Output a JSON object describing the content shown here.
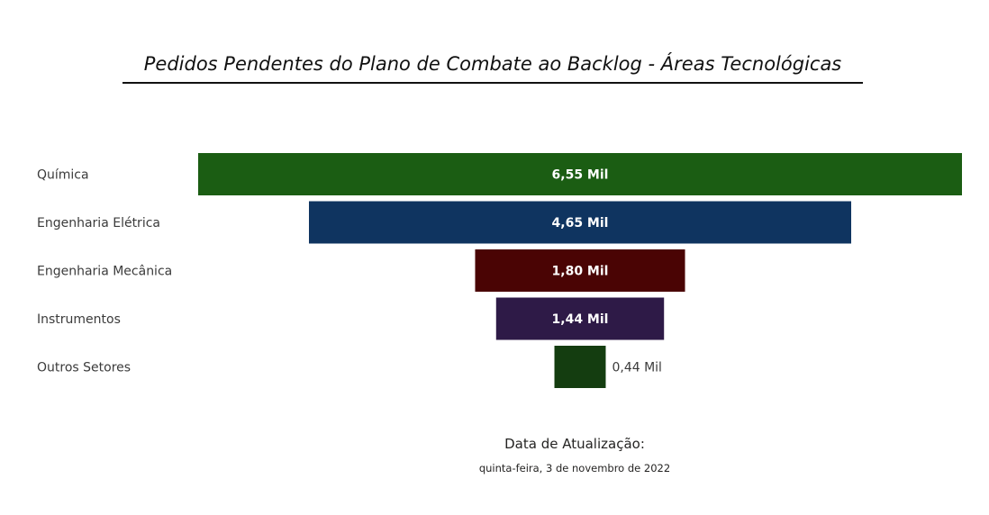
{
  "chart_data": {
    "type": "funnel",
    "title": "Pedidos Pendentes do Plano de Combate ao Backlog - Áreas Tecnológicas",
    "categories": [
      "Química",
      "Engenharia Elétrica",
      "Engenharia Mecânica",
      "Instrumentos",
      "Outros Setores"
    ],
    "values": [
      6550,
      4650,
      1800,
      1440,
      440
    ],
    "value_labels": [
      "6,55 Mil",
      "4,65 Mil",
      "1,80 Mil",
      "1,44 Mil",
      "0,44 Mil"
    ],
    "colors": [
      "#1b5d13",
      "#0f3460",
      "#4a0404",
      "#2e1a47",
      "#143d10"
    ]
  },
  "footer": {
    "update_label": "Data de Atualização:",
    "update_date": "quinta-feira, 3 de novembro de 2022"
  }
}
